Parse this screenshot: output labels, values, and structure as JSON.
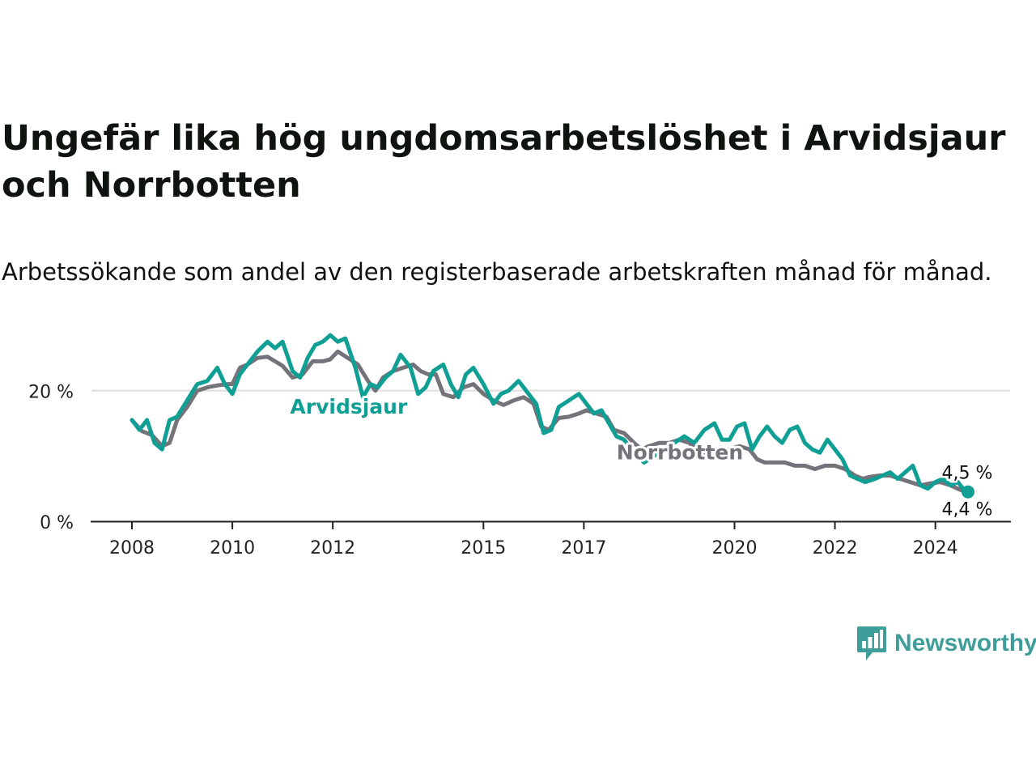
{
  "title": "Ungefär lika hög ungdomsarbetslöshet i Arvidsjaur och Norrbotten",
  "subtitle": "Arbetssökande som andel av den registerbaserade arbetskraften månad för månad.",
  "brand": {
    "name": "Newsworthy",
    "color": "#3f9e9a"
  },
  "chart_data": {
    "type": "line",
    "title": "Ungefär lika hög ungdomsarbetslöshet i Arvidsjaur och Norrbotten",
    "xlabel": "",
    "ylabel": "",
    "xlim": [
      2008,
      2024.65
    ],
    "ylim": [
      0,
      30
    ],
    "grid": true,
    "x_ticks": [
      {
        "value": 2008,
        "label": "2008"
      },
      {
        "value": 2010,
        "label": "2010"
      },
      {
        "value": 2012,
        "label": "2012"
      },
      {
        "value": 2015,
        "label": "2015"
      },
      {
        "value": 2017,
        "label": "2017"
      },
      {
        "value": 2020,
        "label": "2020"
      },
      {
        "value": 2022,
        "label": "2022"
      },
      {
        "value": 2024,
        "label": "2024"
      }
    ],
    "y_ticks": [
      {
        "value": 0,
        "label": "0 %"
      },
      {
        "value": 20,
        "label": "20 %"
      }
    ],
    "series": [
      {
        "name": "Norrbotten",
        "color": "#75737a",
        "label_at": [
          2017.65,
          9.5
        ],
        "end_label": "4,4 %",
        "points": [
          [
            2008.0,
            15.5
          ],
          [
            2008.2,
            13.8
          ],
          [
            2008.4,
            13.2
          ],
          [
            2008.6,
            11.5
          ],
          [
            2008.75,
            12.0
          ],
          [
            2008.9,
            15.5
          ],
          [
            2009.1,
            17.5
          ],
          [
            2009.3,
            20.0
          ],
          [
            2009.5,
            20.5
          ],
          [
            2009.7,
            20.8
          ],
          [
            2009.9,
            21.0
          ],
          [
            2010.0,
            21.0
          ],
          [
            2010.15,
            23.5
          ],
          [
            2010.3,
            24.0
          ],
          [
            2010.5,
            25.0
          ],
          [
            2010.7,
            25.2
          ],
          [
            2010.85,
            24.5
          ],
          [
            2011.0,
            23.8
          ],
          [
            2011.2,
            22.0
          ],
          [
            2011.4,
            22.5
          ],
          [
            2011.6,
            24.5
          ],
          [
            2011.8,
            24.5
          ],
          [
            2011.95,
            24.8
          ],
          [
            2012.1,
            26.0
          ],
          [
            2012.3,
            25.0
          ],
          [
            2012.5,
            24.0
          ],
          [
            2012.7,
            21.5
          ],
          [
            2012.85,
            20.0
          ],
          [
            2013.0,
            22.0
          ],
          [
            2013.2,
            23.0
          ],
          [
            2013.4,
            23.5
          ],
          [
            2013.6,
            24.0
          ],
          [
            2013.75,
            23.0
          ],
          [
            2013.9,
            22.5
          ],
          [
            2014.05,
            22.5
          ],
          [
            2014.2,
            19.5
          ],
          [
            2014.4,
            19.0
          ],
          [
            2014.6,
            20.5
          ],
          [
            2014.8,
            21.0
          ],
          [
            2015.0,
            19.5
          ],
          [
            2015.2,
            18.5
          ],
          [
            2015.4,
            17.8
          ],
          [
            2015.6,
            18.5
          ],
          [
            2015.8,
            19.0
          ],
          [
            2016.0,
            18.0
          ],
          [
            2016.15,
            14.5
          ],
          [
            2016.3,
            14.0
          ],
          [
            2016.5,
            15.8
          ],
          [
            2016.7,
            16.0
          ],
          [
            2016.9,
            16.5
          ],
          [
            2017.05,
            17.0
          ],
          [
            2017.25,
            16.5
          ],
          [
            2017.45,
            16.0
          ],
          [
            2017.6,
            14.0
          ],
          [
            2017.8,
            13.5
          ],
          [
            2018.0,
            12.0
          ],
          [
            2018.15,
            11.0
          ],
          [
            2018.3,
            11.5
          ],
          [
            2018.5,
            12.0
          ],
          [
            2018.7,
            12.0
          ],
          [
            2018.9,
            12.5
          ],
          [
            2019.1,
            12.0
          ],
          [
            2019.3,
            10.5
          ],
          [
            2019.5,
            10.0
          ],
          [
            2019.7,
            11.0
          ],
          [
            2019.9,
            11.0
          ],
          [
            2020.1,
            11.5
          ],
          [
            2020.3,
            11.0
          ],
          [
            2020.45,
            9.5
          ],
          [
            2020.6,
            9.0
          ],
          [
            2020.8,
            9.0
          ],
          [
            2021.0,
            9.0
          ],
          [
            2021.2,
            8.5
          ],
          [
            2021.4,
            8.5
          ],
          [
            2021.6,
            8.0
          ],
          [
            2021.8,
            8.5
          ],
          [
            2022.0,
            8.5
          ],
          [
            2022.2,
            8.0
          ],
          [
            2022.4,
            7.0
          ],
          [
            2022.55,
            6.5
          ],
          [
            2022.7,
            6.8
          ],
          [
            2022.9,
            7.0
          ],
          [
            2023.1,
            7.0
          ],
          [
            2023.3,
            6.5
          ],
          [
            2023.5,
            6.0
          ],
          [
            2023.7,
            5.5
          ],
          [
            2023.9,
            5.8
          ],
          [
            2024.1,
            6.0
          ],
          [
            2024.3,
            5.5
          ],
          [
            2024.5,
            4.8
          ],
          [
            2024.65,
            4.4
          ]
        ]
      },
      {
        "name": "Arvidsjaur",
        "color": "#0f9f94",
        "label_at": [
          2011.15,
          16.5
        ],
        "end_label": "4,5 %",
        "points": [
          [
            2008.0,
            15.5
          ],
          [
            2008.15,
            14.0
          ],
          [
            2008.3,
            15.5
          ],
          [
            2008.45,
            12.0
          ],
          [
            2008.6,
            11.0
          ],
          [
            2008.75,
            15.5
          ],
          [
            2008.9,
            16.0
          ],
          [
            2009.1,
            18.5
          ],
          [
            2009.3,
            21.0
          ],
          [
            2009.5,
            21.5
          ],
          [
            2009.7,
            23.5
          ],
          [
            2009.85,
            21.0
          ],
          [
            2010.0,
            19.5
          ],
          [
            2010.15,
            22.5
          ],
          [
            2010.3,
            24.0
          ],
          [
            2010.5,
            26.0
          ],
          [
            2010.7,
            27.5
          ],
          [
            2010.85,
            26.5
          ],
          [
            2011.0,
            27.5
          ],
          [
            2011.2,
            23.0
          ],
          [
            2011.35,
            22.0
          ],
          [
            2011.5,
            25.0
          ],
          [
            2011.65,
            27.0
          ],
          [
            2011.8,
            27.5
          ],
          [
            2011.95,
            28.5
          ],
          [
            2012.1,
            27.5
          ],
          [
            2012.25,
            28.0
          ],
          [
            2012.45,
            23.5
          ],
          [
            2012.6,
            19.0
          ],
          [
            2012.75,
            21.0
          ],
          [
            2012.9,
            20.5
          ],
          [
            2013.05,
            22.0
          ],
          [
            2013.2,
            23.0
          ],
          [
            2013.35,
            25.5
          ],
          [
            2013.55,
            23.5
          ],
          [
            2013.7,
            19.5
          ],
          [
            2013.85,
            20.5
          ],
          [
            2014.0,
            23.0
          ],
          [
            2014.2,
            24.0
          ],
          [
            2014.35,
            21.0
          ],
          [
            2014.5,
            19.0
          ],
          [
            2014.65,
            22.5
          ],
          [
            2014.8,
            23.5
          ],
          [
            2015.0,
            21.0
          ],
          [
            2015.2,
            18.0
          ],
          [
            2015.35,
            19.5
          ],
          [
            2015.5,
            20.0
          ],
          [
            2015.7,
            21.5
          ],
          [
            2015.9,
            19.5
          ],
          [
            2016.05,
            18.0
          ],
          [
            2016.2,
            13.5
          ],
          [
            2016.35,
            14.0
          ],
          [
            2016.5,
            17.5
          ],
          [
            2016.7,
            18.5
          ],
          [
            2016.9,
            19.5
          ],
          [
            2017.05,
            18.0
          ],
          [
            2017.2,
            16.5
          ],
          [
            2017.35,
            17.0
          ],
          [
            2017.5,
            15.0
          ],
          [
            2017.65,
            13.0
          ],
          [
            2017.8,
            12.5
          ],
          [
            2018.0,
            10.5
          ],
          [
            2018.2,
            9.0
          ],
          [
            2018.4,
            10.0
          ],
          [
            2018.6,
            11.0
          ],
          [
            2018.8,
            12.0
          ],
          [
            2019.0,
            13.0
          ],
          [
            2019.2,
            12.0
          ],
          [
            2019.4,
            14.0
          ],
          [
            2019.6,
            15.0
          ],
          [
            2019.75,
            12.5
          ],
          [
            2019.9,
            12.5
          ],
          [
            2020.05,
            14.5
          ],
          [
            2020.2,
            15.0
          ],
          [
            2020.35,
            11.0
          ],
          [
            2020.5,
            13.0
          ],
          [
            2020.65,
            14.5
          ],
          [
            2020.8,
            13.0
          ],
          [
            2020.95,
            12.0
          ],
          [
            2021.1,
            14.0
          ],
          [
            2021.25,
            14.5
          ],
          [
            2021.4,
            12.0
          ],
          [
            2021.55,
            11.0
          ],
          [
            2021.7,
            10.5
          ],
          [
            2021.85,
            12.5
          ],
          [
            2022.0,
            11.0
          ],
          [
            2022.15,
            9.5
          ],
          [
            2022.3,
            7.0
          ],
          [
            2022.45,
            6.5
          ],
          [
            2022.6,
            6.0
          ],
          [
            2022.8,
            6.5
          ],
          [
            2022.95,
            7.0
          ],
          [
            2023.1,
            7.5
          ],
          [
            2023.25,
            6.5
          ],
          [
            2023.4,
            7.5
          ],
          [
            2023.55,
            8.5
          ],
          [
            2023.7,
            5.5
          ],
          [
            2023.85,
            5.0
          ],
          [
            2024.0,
            6.0
          ],
          [
            2024.15,
            6.5
          ],
          [
            2024.3,
            5.5
          ],
          [
            2024.45,
            6.0
          ],
          [
            2024.55,
            5.0
          ],
          [
            2024.65,
            4.5
          ]
        ]
      }
    ]
  }
}
